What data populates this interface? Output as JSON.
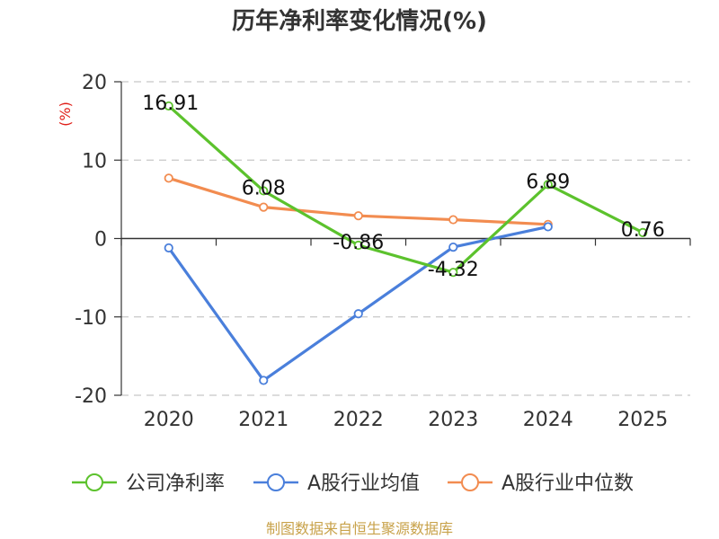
{
  "chart_data": {
    "type": "line",
    "title": "历年净利率变化情况(%)",
    "ylabel": "(%)",
    "xlabel": "",
    "categories": [
      "2020",
      "2021",
      "2022",
      "2023",
      "2024",
      "2025"
    ],
    "ylim": [
      -20,
      20
    ],
    "yticks": [
      20,
      10,
      0,
      -10,
      -20
    ],
    "grid": true,
    "legend_position": "bottom",
    "series": [
      {
        "name": "公司净利率",
        "color": "#5cc22d",
        "values": [
          16.91,
          6.08,
          -0.86,
          -4.32,
          6.89,
          0.76
        ],
        "labels": [
          "16.91",
          "6.08",
          "-0.86",
          "-4.32",
          "6.89",
          "0.76"
        ]
      },
      {
        "name": "A股行业均值",
        "color": "#4a7fdb",
        "values": [
          -1.2,
          -18.1,
          -9.6,
          -1.1,
          1.5,
          null
        ]
      },
      {
        "name": "A股行业中位数",
        "color": "#f28c50",
        "values": [
          7.7,
          4.0,
          2.9,
          2.4,
          1.8,
          null
        ]
      }
    ]
  },
  "source": "制图数据来自恒生聚源数据库"
}
